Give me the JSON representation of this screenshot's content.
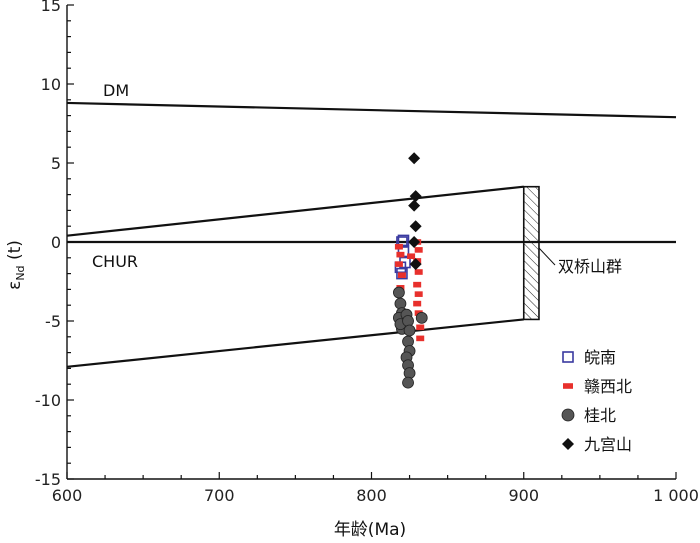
{
  "chart_data": {
    "type": "scatter",
    "xlabel": "年龄(Ma)",
    "ylabel_main": "ε",
    "ylabel_sub": "Nd",
    "ylabel_rest": " (t)",
    "xlim": [
      600,
      1000
    ],
    "ylim": [
      -15,
      15
    ],
    "xticks": [
      600,
      700,
      800,
      900,
      1000
    ],
    "xtick_labels": [
      "600",
      "700",
      "800",
      "900",
      "1 000"
    ],
    "yticks": [
      15,
      10,
      5,
      0,
      -5,
      -10,
      -15
    ],
    "ytick_labels": [
      "15",
      "10",
      "5",
      "0",
      "-5",
      "-10",
      "-15"
    ],
    "grid": false,
    "legend_position": "bottom-right",
    "reference_lines": [
      {
        "label": "DM",
        "x": [
          600,
          1000
        ],
        "y": [
          8.8,
          7.9
        ]
      },
      {
        "label": "CHUR",
        "x": [
          600,
          1000
        ],
        "y": [
          0,
          0
        ]
      }
    ],
    "envelope": {
      "label": "双桥山群",
      "upper": {
        "x": [
          600,
          900
        ],
        "y": [
          0.4,
          3.5
        ]
      },
      "lower": {
        "x": [
          600,
          900
        ],
        "y": [
          -7.9,
          -4.9
        ]
      },
      "hatched_x": [
        900,
        910
      ]
    },
    "series": [
      {
        "name": "皖南",
        "marker": "open-square",
        "color": "#3a3aa0",
        "x": [
          820,
          821,
          822,
          820,
          819,
          821
        ],
        "y": [
          0.0,
          -0.6,
          -1.3,
          -2.0,
          -1.6,
          0.1
        ]
      },
      {
        "name": "赣西北",
        "marker": "dash",
        "color": "#e8302c",
        "x": [
          818,
          819,
          818,
          820,
          819,
          826,
          830,
          831,
          830,
          831,
          830,
          831,
          830,
          831,
          832,
          832
        ],
        "y": [
          -0.3,
          -0.8,
          -1.4,
          -2.1,
          -2.9,
          -0.9,
          0.0,
          -0.5,
          -1.2,
          -1.9,
          -2.7,
          -3.3,
          -3.9,
          -4.5,
          -5.4,
          -6.1
        ]
      },
      {
        "name": "桂北",
        "marker": "circle",
        "color": "#555555",
        "x": [
          818,
          819,
          820,
          821,
          820,
          818,
          819,
          823,
          824,
          825,
          824,
          825,
          823,
          824,
          825,
          824,
          833
        ],
        "y": [
          -3.2,
          -3.9,
          -4.5,
          -5.1,
          -5.5,
          -4.8,
          -5.2,
          -4.6,
          -5.0,
          -5.6,
          -6.3,
          -6.9,
          -7.3,
          -7.8,
          -8.3,
          -8.9,
          -4.8
        ]
      },
      {
        "name": "九宫山",
        "marker": "diamond",
        "color": "#111111",
        "x": [
          828,
          829,
          828,
          829,
          828,
          829
        ],
        "y": [
          5.3,
          2.9,
          2.3,
          1.0,
          0.0,
          -1.4
        ]
      }
    ]
  }
}
